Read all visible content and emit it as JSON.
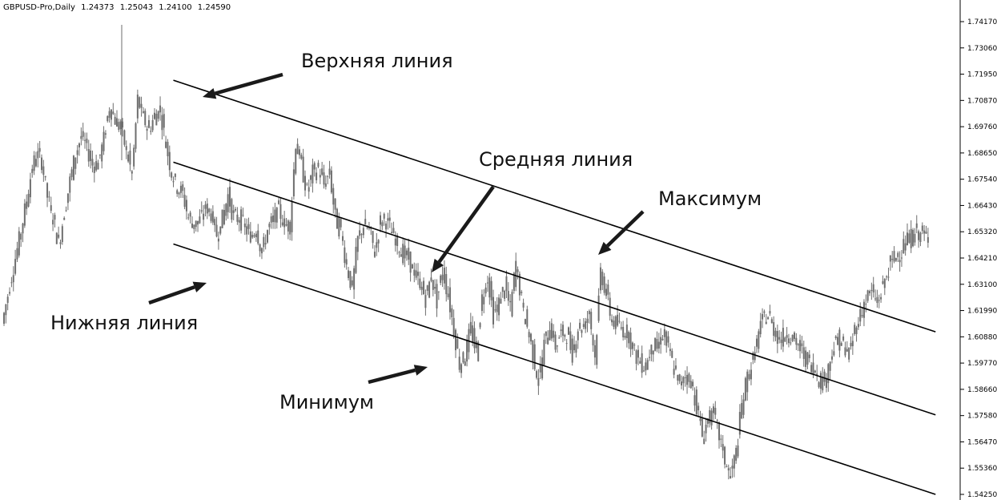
{
  "header": {
    "symbol": "GBPUSD-Pro,Daily",
    "open": "1.24373",
    "high": "1.25043",
    "low": "1.24100",
    "close": "1.24590"
  },
  "annotations": {
    "upper_line": "Верхняя линия",
    "middle_line": "Средняя линия",
    "lower_line": "Нижняя линия",
    "maximum": "Максимум",
    "minimum": "Минимум"
  },
  "colors": {
    "candle": "#6e6e6e",
    "channel_line": "#000000",
    "arrow": "#1a1a1a",
    "axis": "#000000"
  },
  "icons": [
    "arrow-icon"
  ],
  "chart_data": {
    "type": "candlestick",
    "title": "",
    "xlabel": "",
    "ylabel": "",
    "y_ticks": [
      "1.74170",
      "1.73060",
      "1.71950",
      "1.70870",
      "1.69760",
      "1.68650",
      "1.67540",
      "1.66430",
      "1.65320",
      "1.64210",
      "1.63100",
      "1.61990",
      "1.60880",
      "1.59770",
      "1.58660",
      "1.57580",
      "1.56470",
      "1.55360",
      "1.54250"
    ],
    "ylim": [
      1.5425,
      1.7417
    ],
    "grid": false,
    "close_series": [
      1.6145,
      1.6265,
      1.6385,
      1.6495,
      1.662,
      1.676,
      1.686,
      1.683,
      1.668,
      1.659,
      1.648,
      1.661,
      1.6745,
      1.686,
      1.6935,
      1.6885,
      1.6815,
      1.682,
      1.692,
      1.706,
      1.7005,
      1.6965,
      1.6875,
      1.677,
      1.709,
      1.701,
      1.696,
      1.702,
      1.705,
      1.69,
      1.678,
      1.672,
      1.669,
      1.659,
      1.656,
      1.658,
      1.6635,
      1.661,
      1.652,
      1.6585,
      1.6685,
      1.659,
      1.659,
      1.655,
      1.651,
      1.655,
      1.644,
      1.654,
      1.658,
      1.6625,
      1.656,
      1.656,
      1.691,
      1.681,
      1.67,
      1.678,
      1.68,
      1.673,
      1.678,
      1.659,
      1.653,
      1.639,
      1.629,
      1.65,
      1.656,
      1.654,
      1.6445,
      1.6575,
      1.658,
      1.653,
      1.648,
      1.6435,
      1.642,
      1.635,
      1.6315,
      1.625,
      1.6345,
      1.624,
      1.637,
      1.6265,
      1.612,
      1.5975,
      1.601,
      1.6125,
      1.602,
      1.6255,
      1.634,
      1.618,
      1.623,
      1.6305,
      1.62,
      1.64,
      1.624,
      1.613,
      1.602,
      1.59,
      1.6055,
      1.614,
      1.605,
      1.6105,
      1.61,
      1.602,
      1.613,
      1.613,
      1.6195,
      1.6,
      1.637,
      1.627,
      1.6155,
      1.614,
      1.612,
      1.61,
      1.602,
      1.598,
      1.5965,
      1.605,
      1.604,
      1.6105,
      1.6035,
      1.5955,
      1.588,
      1.593,
      1.59,
      1.58,
      1.567,
      1.574,
      1.576,
      1.567,
      1.557,
      1.55,
      1.56,
      1.58,
      1.592,
      1.599,
      1.61,
      1.618,
      1.617,
      1.61,
      1.608,
      1.611,
      1.608,
      1.605,
      1.601,
      1.598,
      1.595,
      1.59,
      1.592,
      1.603,
      1.608,
      1.605,
      1.601,
      1.612,
      1.618,
      1.625,
      1.628,
      1.623,
      1.63,
      1.638,
      1.642,
      1.645,
      1.648,
      1.651,
      1.653,
      1.652,
      1.65
    ],
    "channel_lines": {
      "upper": [
        {
          "x_index": 30,
          "price": 1.717
        },
        {
          "x_index": 165,
          "price": 1.611
        }
      ],
      "middle": [
        {
          "x_index": 30,
          "price": 1.6825
        },
        {
          "x_index": 165,
          "price": 1.576
        }
      ],
      "lower": [
        {
          "x_index": 30,
          "price": 1.648
        },
        {
          "x_index": 165,
          "price": 1.5425
        }
      ]
    }
  }
}
